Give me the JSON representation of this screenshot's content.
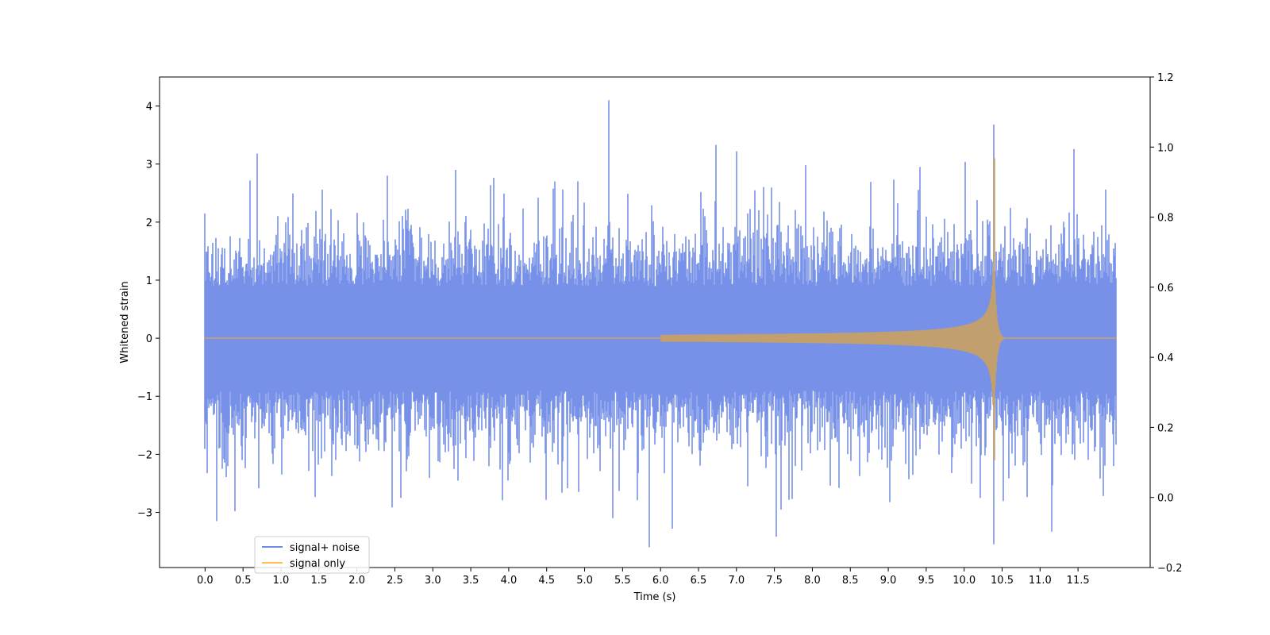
{
  "chart_data": {
    "type": "line",
    "title": "",
    "xlabel": "Time (s)",
    "ylabel": "Whitened strain",
    "xlim": [
      -0.6,
      12.45
    ],
    "ylim": [
      -3.95,
      4.5
    ],
    "y2lim": [
      -0.2,
      1.2
    ],
    "x_ticks": [
      "0.0",
      "0.5",
      "1.0",
      "1.5",
      "2.0",
      "2.5",
      "3.0",
      "3.5",
      "4.0",
      "4.5",
      "5.0",
      "5.5",
      "6.0",
      "6.5",
      "7.0",
      "7.5",
      "8.0",
      "8.5",
      "9.0",
      "9.5",
      "10.0",
      "10.5",
      "11.0",
      "11.5"
    ],
    "y_ticks": [
      "−3",
      "−2",
      "−1",
      "0",
      "1",
      "2",
      "3",
      "4"
    ],
    "y2_ticks": [
      "−0.2",
      "0.0",
      "0.2",
      "0.4",
      "0.6",
      "0.8",
      "1.0",
      "1.2"
    ],
    "grid": false,
    "legend": "lower-left",
    "series": [
      {
        "name": "signal+ noise",
        "color": "#6f8be6",
        "x_range": [
          0.0,
          12.0
        ],
        "typical_envelope": [
          -1.5,
          1.5
        ],
        "peaks": [
          {
            "x": 0.69,
            "y": 3.18
          },
          {
            "x": 0.15,
            "y": -3.15
          },
          {
            "x": 0.39,
            "y": -2.98
          },
          {
            "x": 5.32,
            "y": 4.1
          },
          {
            "x": 5.37,
            "y": -3.1
          },
          {
            "x": 6.15,
            "y": -3.28
          },
          {
            "x": 6.73,
            "y": 3.33
          },
          {
            "x": 7.0,
            "y": 3.22
          },
          {
            "x": 7.52,
            "y": -3.42
          },
          {
            "x": 10.39,
            "y": 3.68
          },
          {
            "x": 10.39,
            "y": -3.55
          },
          {
            "x": 11.15,
            "y": -3.33
          },
          {
            "x": 3.3,
            "y": 2.9
          },
          {
            "x": 9.42,
            "y": 2.95
          },
          {
            "x": 2.4,
            "y": 2.8
          }
        ]
      },
      {
        "name": "signal only",
        "color": "#ffc04d",
        "type": "chirp",
        "onset": 6.0,
        "merger": 10.4,
        "peak_amplitude": 3.1,
        "min_amplitude": -2.1
      }
    ]
  }
}
